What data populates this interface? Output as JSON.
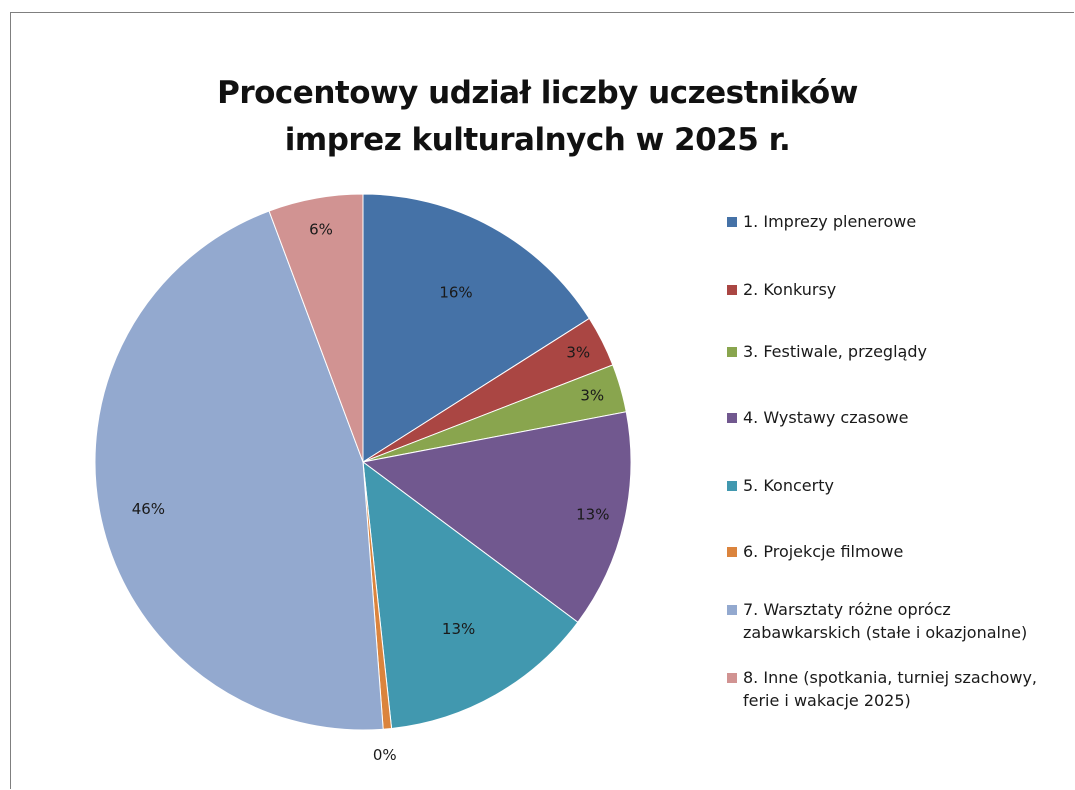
{
  "chart_data": {
    "type": "pie",
    "title_lines": [
      "Procentowy udział liczby uczestników",
      "imprez kulturalnych w 2025 r."
    ],
    "slices": [
      {
        "label": "1. Imprezy plenerowe",
        "value": 16.0,
        "data_label": "16%",
        "color": "#4572A7"
      },
      {
        "label": "2.  Konkursy",
        "value": 3.1,
        "data_label": "3%",
        "color": "#AA4643"
      },
      {
        "label": "3.  Festiwale, przeglądy",
        "value": 2.9,
        "data_label": "3%",
        "color": "#89A54E"
      },
      {
        "label": "4.  Wystawy czasowe",
        "value": 13.2,
        "data_label": "13%",
        "color": "#71588F"
      },
      {
        "label": "5.  Koncerty",
        "value": 13.1,
        "data_label": "13%",
        "color": "#4198AF"
      },
      {
        "label": "6.  Projekcje filmowe",
        "value": 0.5,
        "data_label": "0%",
        "color": "#DB843D"
      },
      {
        "label": "7. Warsztaty różne oprócz\nzabawkarskich (stałe i okazjonalne)",
        "value": 45.5,
        "data_label": "46%",
        "color": "#93A9CF"
      },
      {
        "label": "8. Inne (spotkania, turniej szachowy,\nferie i wakacje 2025)",
        "value": 5.7,
        "data_label": "6%",
        "color": "#D19392"
      }
    ],
    "start_angle": "12 o'clock",
    "direction": "clockwise",
    "legend_position": "right"
  }
}
